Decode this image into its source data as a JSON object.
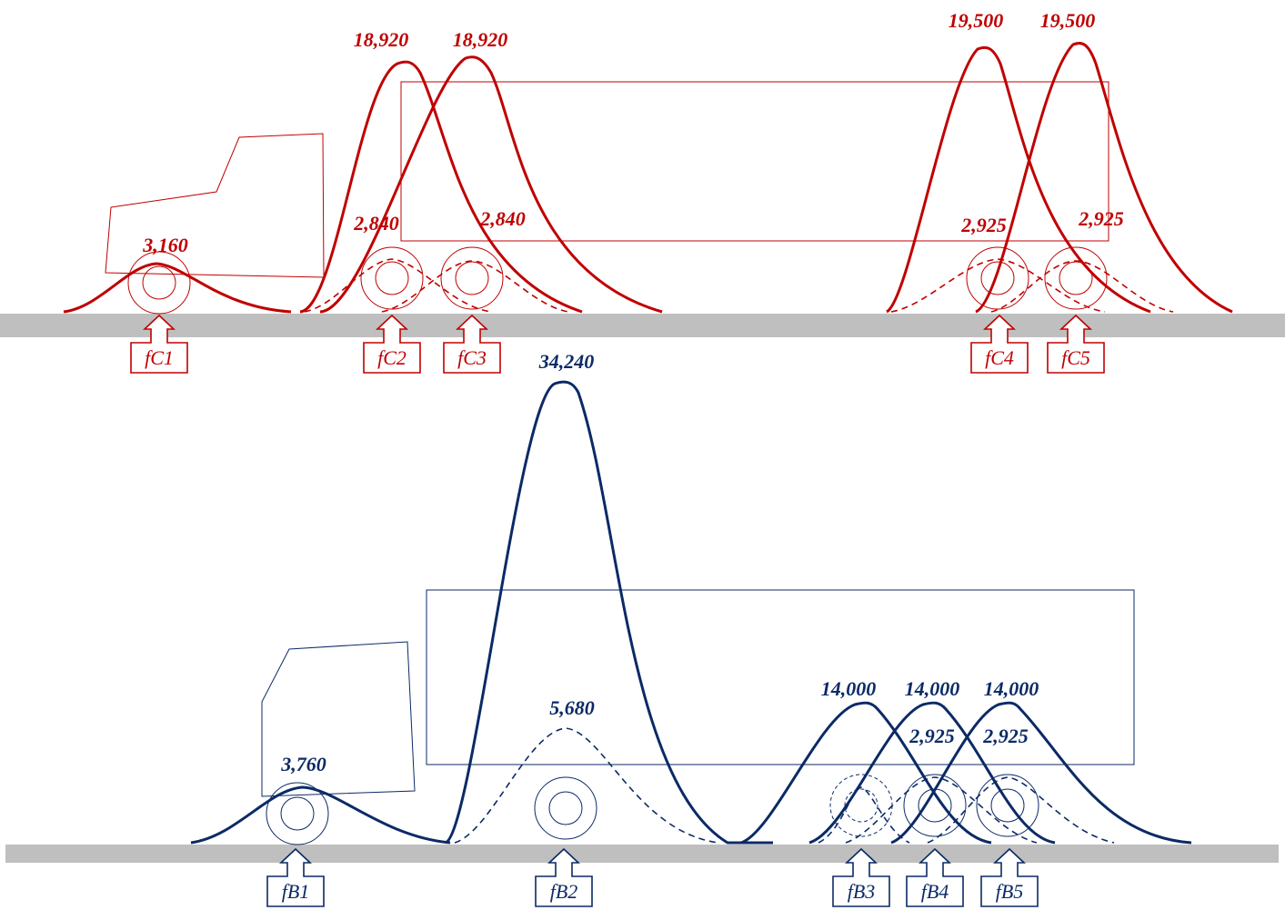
{
  "colors": {
    "top": "#c00000",
    "bottom": "#0b2a66",
    "road": "#bfbfbf"
  },
  "top_diagram": {
    "peak_labels": [
      "3,160",
      "18,920",
      "18,920",
      "19,500",
      "19,500"
    ],
    "secondary_labels": [
      "2,840",
      "2,840",
      "2,925",
      "2,925"
    ],
    "axle_labels": [
      "fC1",
      "fC2",
      "fC3",
      "fC4",
      "fC5"
    ]
  },
  "bottom_diagram": {
    "peak_labels": [
      "3,760",
      "34,240",
      "14,000",
      "14,000",
      "14,000"
    ],
    "secondary_labels": [
      "5,680",
      "2,925",
      "2,925"
    ],
    "axle_labels": [
      "fB1",
      "fB2",
      "fB3",
      "fB4",
      "fB5"
    ]
  }
}
